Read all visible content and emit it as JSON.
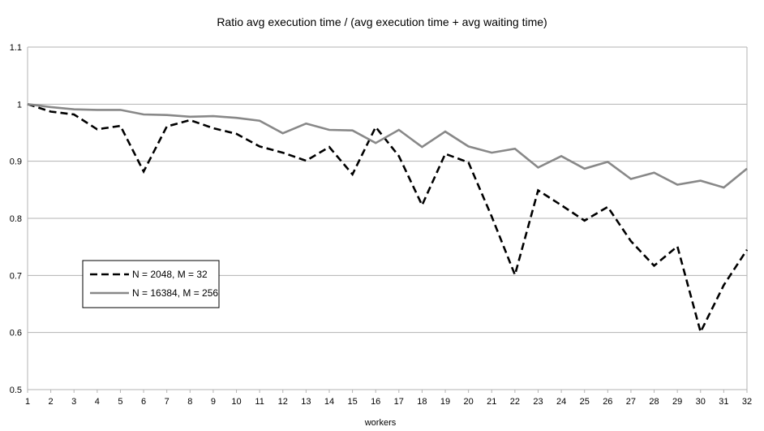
{
  "chart_data": {
    "type": "line",
    "title": "Ratio avg execution time / (avg execution time + avg waiting time)",
    "xlabel": "workers",
    "ylabel": "",
    "x": [
      1,
      2,
      3,
      4,
      5,
      6,
      7,
      8,
      9,
      10,
      11,
      12,
      13,
      14,
      15,
      16,
      17,
      18,
      19,
      20,
      21,
      22,
      23,
      24,
      25,
      26,
      27,
      28,
      29,
      30,
      31,
      32
    ],
    "ylim": [
      0.5,
      1.1
    ],
    "yticks": [
      "0.5",
      "0.6",
      "0.7",
      "0.8",
      "0.9",
      "1",
      "1.1"
    ],
    "grid": "horizontal",
    "legend_position": "left",
    "series": [
      {
        "name": "N = 2048, M = 32",
        "style": "dashed",
        "color": "#000000",
        "values": [
          1.0,
          0.987,
          0.982,
          0.956,
          0.962,
          0.882,
          0.961,
          0.972,
          0.958,
          0.948,
          0.926,
          0.915,
          0.901,
          0.925,
          0.877,
          0.96,
          0.909,
          0.823,
          0.913,
          0.898,
          0.803,
          0.701,
          0.849,
          0.823,
          0.796,
          0.82,
          0.76,
          0.717,
          0.751,
          0.601,
          0.683,
          0.745
        ]
      },
      {
        "name": "N = 16384, M = 256",
        "style": "solid",
        "color": "#888888",
        "values": [
          1.0,
          0.995,
          0.991,
          0.99,
          0.99,
          0.982,
          0.981,
          0.978,
          0.979,
          0.976,
          0.971,
          0.949,
          0.966,
          0.955,
          0.954,
          0.932,
          0.955,
          0.925,
          0.952,
          0.926,
          0.915,
          0.922,
          0.889,
          0.909,
          0.887,
          0.899,
          0.869,
          0.88,
          0.859,
          0.866,
          0.854,
          0.887
        ]
      }
    ]
  }
}
